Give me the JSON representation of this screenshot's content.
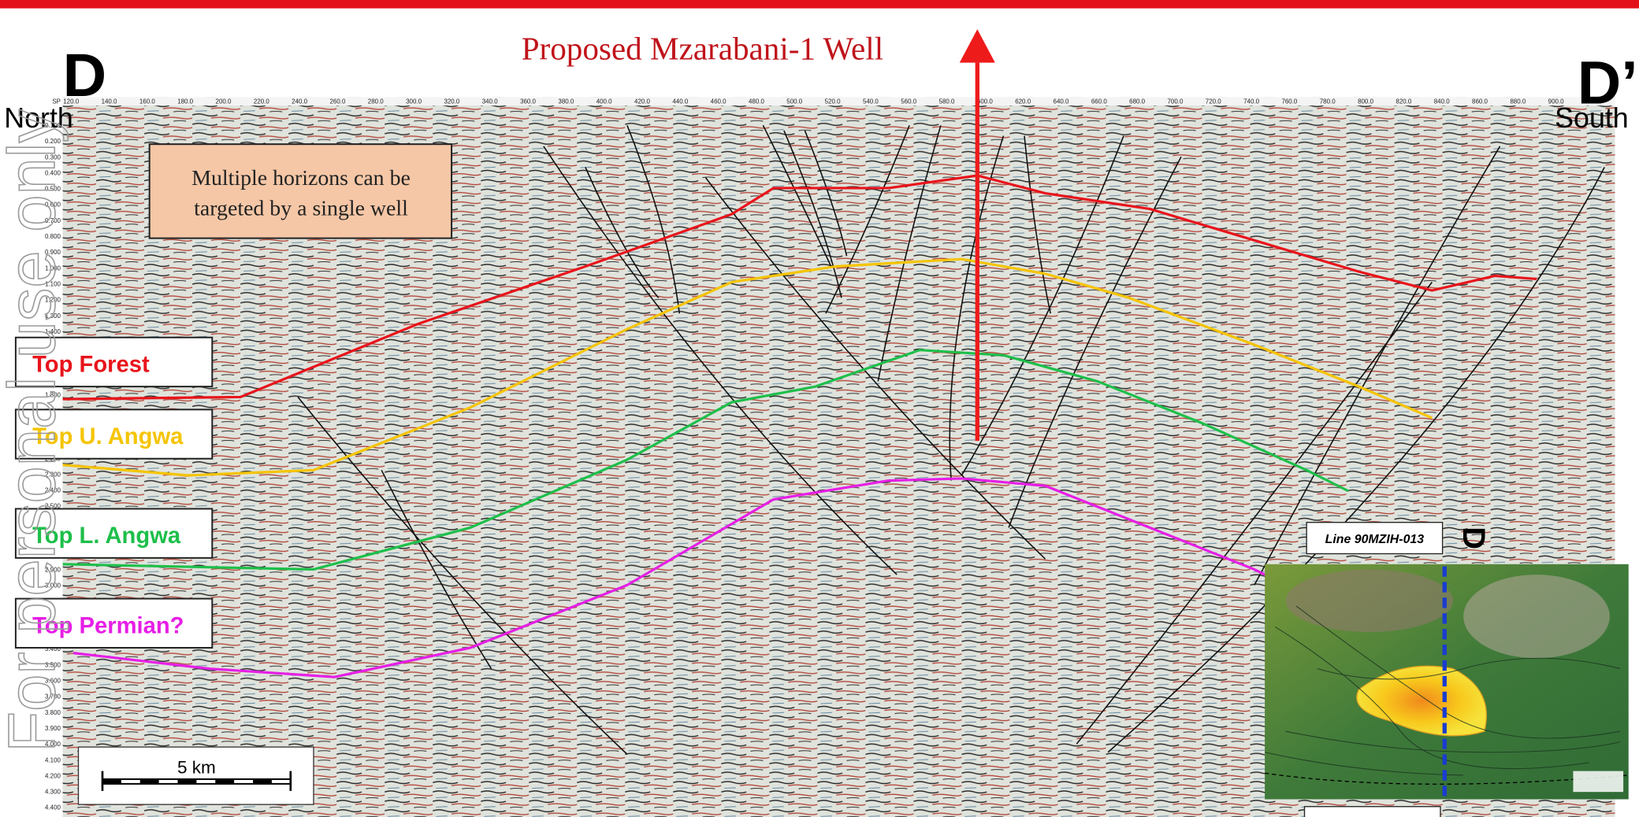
{
  "header": {
    "title": "Proposed Mzarabani-1 Well",
    "left_marker": "D",
    "right_marker": "D’",
    "left_direction": "North",
    "right_direction": "South"
  },
  "watermark": "For personal use only",
  "annotation": [
    "Multiple horizons can be",
    "targeted by a single well"
  ],
  "horizons": [
    {
      "label": "Top Forest",
      "color": "#e8141b"
    },
    {
      "label": "Top U. Angwa",
      "color": "#f5c400"
    },
    {
      "label": "Top L. Angwa",
      "color": "#1dbf4a"
    },
    {
      "label": "Top Permian?",
      "color": "#e61ee6"
    }
  ],
  "scale_bar": "5 km",
  "inset": {
    "line_label": "Line 90MZIH-013",
    "section_marker": "D"
  },
  "axes": {
    "shotpoint_label": "SP",
    "shotpoints": [
      "120.0",
      "140.0",
      "160.0",
      "180.0",
      "200.0",
      "220.0",
      "240.0",
      "260.0",
      "280.0",
      "300.0",
      "320.0",
      "340.0",
      "360.0",
      "380.0",
      "400.0",
      "420.0",
      "440.0",
      "460.0",
      "480.0",
      "500.0",
      "520.0",
      "540.0",
      "560.0",
      "580.0",
      "600.0",
      "620.0",
      "640.0",
      "660.0",
      "680.0",
      "700.0",
      "720.0",
      "740.0",
      "760.0",
      "780.0",
      "800.0",
      "820.0",
      "840.0",
      "860.0",
      "880.0",
      "900.0",
      "920.0"
    ],
    "times": [
      "0.100",
      "0.200",
      "0.300",
      "0.400",
      "0.500",
      "0.600",
      "0.700",
      "0.800",
      "0.900",
      "1.000",
      "1.100",
      "1.200",
      "1.300",
      "1.400",
      "1.500",
      "1.600",
      "1.700",
      "1.800",
      "1.900",
      "2.000",
      "2.100",
      "2.200",
      "2.300",
      "2.400",
      "2.500",
      "2.600",
      "2.700",
      "2.800",
      "2.900",
      "3.000",
      "3.100",
      "3.200",
      "3.300",
      "3.400",
      "3.500",
      "3.600",
      "3.700",
      "3.800",
      "3.900",
      "4.000",
      "4.100",
      "4.200",
      "4.300",
      "4.400"
    ]
  }
}
